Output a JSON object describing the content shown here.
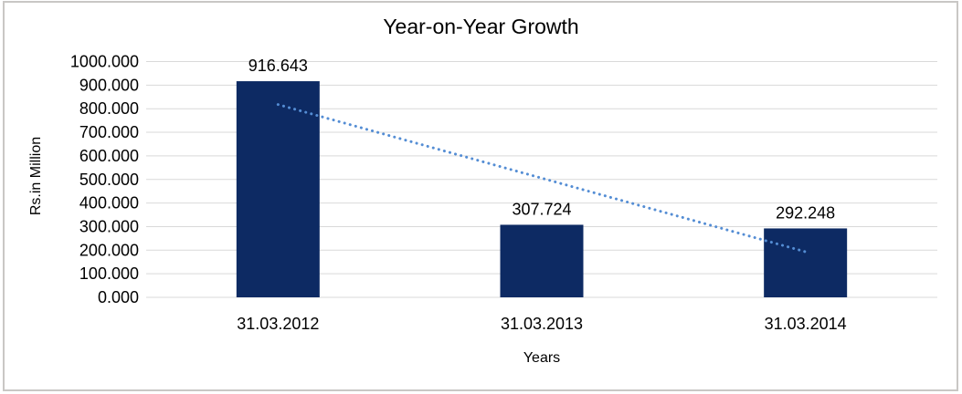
{
  "chart_data": {
    "type": "bar",
    "title": "Year-on-Year Growth",
    "xlabel": "Years",
    "ylabel": "Rs.in Million",
    "categories": [
      "31.03.2012",
      "31.03.2013",
      "31.03.2014"
    ],
    "values": [
      916.643,
      307.724,
      292.248
    ],
    "data_labels": [
      "916.643",
      "307.724",
      "292.248"
    ],
    "ylim": [
      0,
      1000
    ],
    "ytick_step": 100,
    "yticks": [
      {
        "value": 1000,
        "label": "1000.000"
      },
      {
        "value": 900,
        "label": "900.000"
      },
      {
        "value": 800,
        "label": "800.000"
      },
      {
        "value": 700,
        "label": "700.000"
      },
      {
        "value": 600,
        "label": "600.000"
      },
      {
        "value": 500,
        "label": "500.000"
      },
      {
        "value": 400,
        "label": "400.000"
      },
      {
        "value": 300,
        "label": "300.000"
      },
      {
        "value": 200,
        "label": "200.000"
      },
      {
        "value": 100,
        "label": "100.000"
      },
      {
        "value": 0,
        "label": "0.000"
      }
    ],
    "grid": true,
    "legend_position": "none",
    "trendline": {
      "kind": "linear",
      "style": "dotted",
      "start_value": 817.7,
      "end_value": 193.3,
      "color": "#548DD4"
    },
    "colors": {
      "bar": "#0D2A63",
      "gridline": "#D9D9D9",
      "text": "#000000",
      "frame_border": "#C9C7C5",
      "background": "#FFFFFF"
    }
  }
}
